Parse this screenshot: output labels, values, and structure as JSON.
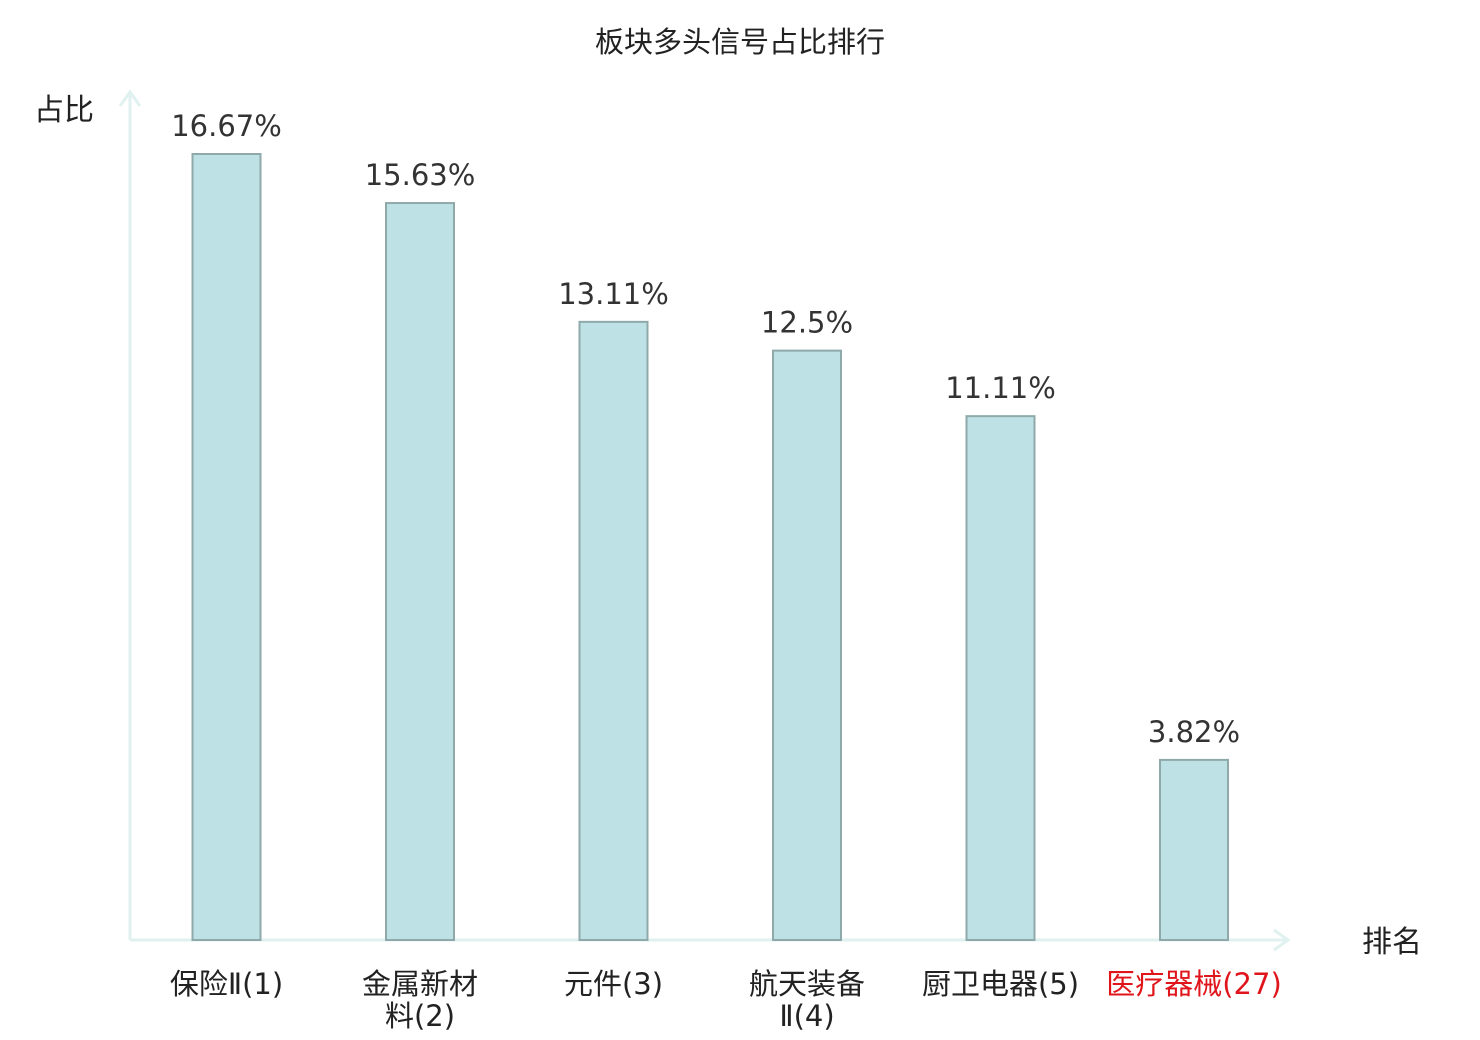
{
  "chart_data": {
    "type": "bar",
    "title": "板块多头信号占比排行",
    "ylabel": "占比",
    "xlabel": "排名",
    "categories": [
      [
        "保险Ⅱ(1)"
      ],
      [
        "金属新材",
        "料(2)"
      ],
      [
        "元件(3)"
      ],
      [
        "航天装备",
        "Ⅱ(4)"
      ],
      [
        "厨卫电器(5)"
      ],
      [
        "医疗器械(27)"
      ]
    ],
    "values": [
      16.67,
      15.63,
      13.11,
      12.5,
      11.11,
      3.82
    ],
    "value_labels": [
      "16.67%",
      "15.63%",
      "13.11%",
      "12.5%",
      "11.11%",
      "3.82%"
    ],
    "highlight_index": 5,
    "ylim": [
      0,
      16.67
    ],
    "grid": false,
    "colors": {
      "bar_fill": "#bde1e4",
      "bar_stroke": "#8fa9aa",
      "axis": "#e0f2ef",
      "highlight_text": "#e0151b",
      "text": "#222222"
    }
  }
}
